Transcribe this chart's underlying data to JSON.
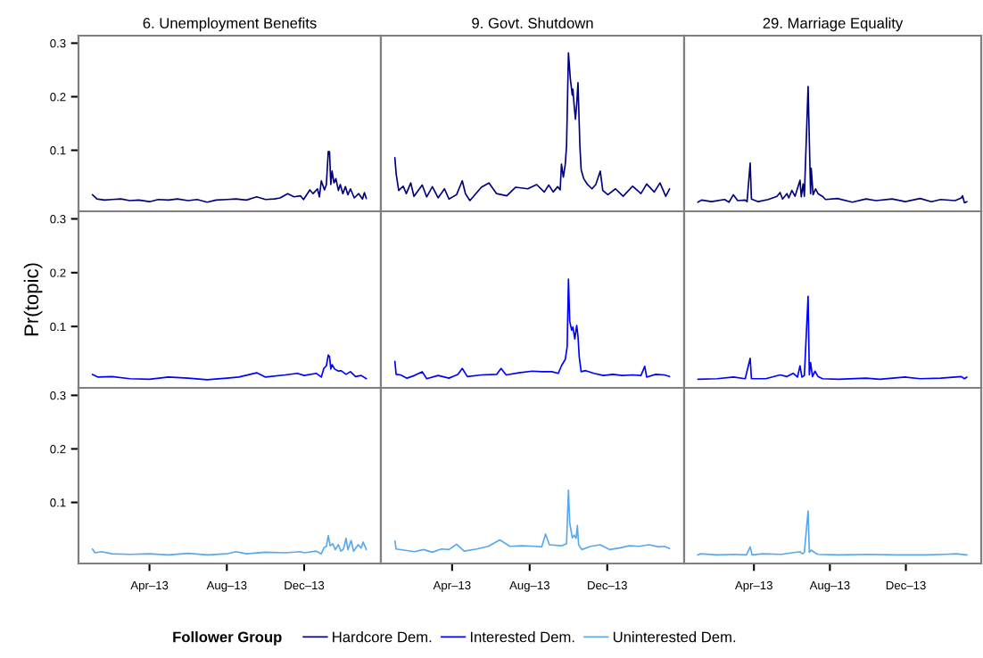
{
  "chart_data": [
    {
      "type": "line",
      "title": "6. Unemployment Benefits",
      "tick_labels": "y",
      "xlim": [
        "2012-12-10",
        "2014-04-01"
      ],
      "ylim": [
        -0.014,
        0.314
      ],
      "yticks": [
        0.1,
        0.2,
        0.3
      ],
      "xticks": [
        {
          "value": "2013-04-01",
          "label": "Apr–13"
        },
        {
          "value": "2013-08-01",
          "label": "Aug–13"
        },
        {
          "value": "2013-12-01",
          "label": "Dec–13"
        }
      ],
      "series": [
        {
          "name": "Hardcore Dem.",
          "color": "#00007f",
          "x": [
            "2013-01-01",
            "2013-01-08",
            "2013-01-20",
            "2013-02-01",
            "2013-02-15",
            "2013-03-01",
            "2013-03-15",
            "2013-04-01",
            "2013-04-15",
            "2013-05-01",
            "2013-05-15",
            "2013-06-01",
            "2013-06-15",
            "2013-07-01",
            "2013-07-15",
            "2013-08-01",
            "2013-08-15",
            "2013-09-01",
            "2013-09-17",
            "2013-10-01",
            "2013-10-15",
            "2013-10-24",
            "2013-11-05",
            "2013-11-15",
            "2013-11-25",
            "2013-11-30",
            "2013-12-10",
            "2013-12-15",
            "2013-12-22",
            "2013-12-25",
            "2013-12-28",
            "2014-01-02",
            "2014-01-05",
            "2014-01-08",
            "2014-01-10",
            "2014-01-12",
            "2014-01-14",
            "2014-01-17",
            "2014-01-20",
            "2014-01-24",
            "2014-01-27",
            "2014-01-31",
            "2014-02-04",
            "2014-02-08",
            "2014-02-12",
            "2014-02-18",
            "2014-02-25",
            "2014-03-03",
            "2014-03-06",
            "2014-03-09"
          ],
          "values": [
            0.017,
            0.009,
            0.007,
            0.008,
            0.009,
            0.006,
            0.007,
            0.004,
            0.008,
            0.007,
            0.009,
            0.006,
            0.008,
            0.003,
            0.007,
            0.008,
            0.009,
            0.007,
            0.013,
            0.008,
            0.009,
            0.011,
            0.019,
            0.013,
            0.015,
            0.008,
            0.026,
            0.019,
            0.028,
            0.013,
            0.043,
            0.026,
            0.036,
            0.098,
            0.097,
            0.036,
            0.061,
            0.039,
            0.047,
            0.025,
            0.036,
            0.019,
            0.032,
            0.017,
            0.028,
            0.011,
            0.019,
            0.009,
            0.021,
            0.01
          ]
        }
      ]
    },
    {
      "type": "line",
      "title": "9. Govt. Shutdown",
      "tick_labels": false,
      "xlim": [
        "2012-12-10",
        "2014-04-01"
      ],
      "ylim": [
        -0.014,
        0.314
      ],
      "yticks": [
        0.1,
        0.2,
        0.3
      ],
      "xticks": [
        {
          "value": "2013-04-01",
          "label": "Apr–13"
        },
        {
          "value": "2013-08-01",
          "label": "Aug–13"
        },
        {
          "value": "2013-12-01",
          "label": "Dec–13"
        }
      ],
      "series": [
        {
          "name": "Hardcore Dem.",
          "color": "#00007f",
          "x": [
            "2013-01-01",
            "2013-01-03",
            "2013-01-07",
            "2013-01-14",
            "2013-01-19",
            "2013-01-26",
            "2013-01-31",
            "2013-02-13",
            "2013-02-20",
            "2013-03-01",
            "2013-03-10",
            "2013-03-20",
            "2013-03-27",
            "2013-04-08",
            "2013-04-17",
            "2013-04-22",
            "2013-04-29",
            "2013-05-17",
            "2013-05-29",
            "2013-06-10",
            "2013-06-26",
            "2013-07-10",
            "2013-07-29",
            "2013-08-12",
            "2013-08-24",
            "2013-08-31",
            "2013-09-07",
            "2013-09-14",
            "2013-09-18",
            "2013-09-20",
            "2013-09-23",
            "2013-09-26",
            "2013-09-28",
            "2013-10-01",
            "2013-10-04",
            "2013-10-07",
            "2013-10-08",
            "2013-10-10",
            "2013-10-12",
            "2013-10-14",
            "2013-10-16",
            "2013-10-19",
            "2013-10-21",
            "2013-10-25",
            "2013-10-31",
            "2013-11-07",
            "2013-11-13",
            "2013-11-20",
            "2013-11-24",
            "2013-12-02",
            "2013-12-14",
            "2013-12-26",
            "2014-01-10",
            "2014-01-23",
            "2014-02-01",
            "2014-02-13",
            "2014-02-22",
            "2014-03-03",
            "2014-03-09"
          ],
          "values": [
            0.086,
            0.056,
            0.025,
            0.033,
            0.019,
            0.039,
            0.014,
            0.035,
            0.013,
            0.032,
            0.011,
            0.028,
            0.009,
            0.017,
            0.043,
            0.019,
            0.006,
            0.031,
            0.039,
            0.019,
            0.015,
            0.031,
            0.028,
            0.036,
            0.022,
            0.035,
            0.022,
            0.032,
            0.026,
            0.074,
            0.05,
            0.074,
            0.108,
            0.282,
            0.233,
            0.203,
            0.214,
            0.183,
            0.158,
            0.186,
            0.226,
            0.108,
            0.064,
            0.047,
            0.036,
            0.028,
            0.036,
            0.061,
            0.025,
            0.017,
            0.028,
            0.014,
            0.033,
            0.019,
            0.037,
            0.022,
            0.039,
            0.014,
            0.028
          ]
        }
      ]
    },
    {
      "type": "line",
      "title": "29. Marriage Equality",
      "tick_labels": false,
      "xlim": [
        "2012-12-10",
        "2014-04-01"
      ],
      "ylim": [
        -0.014,
        0.314
      ],
      "yticks": [
        0.1,
        0.2,
        0.3
      ],
      "xticks": [
        {
          "value": "2013-04-01",
          "label": "Apr–13"
        },
        {
          "value": "2013-08-01",
          "label": "Aug–13"
        },
        {
          "value": "2013-12-01",
          "label": "Dec–13"
        }
      ],
      "series": [
        {
          "name": "Hardcore Dem.",
          "color": "#00007f",
          "x": [
            "2013-01-01",
            "2013-01-07",
            "2013-01-23",
            "2013-02-13",
            "2013-02-20",
            "2013-02-27",
            "2013-03-06",
            "2013-03-18",
            "2013-03-21",
            "2013-03-26",
            "2013-03-28",
            "2013-04-08",
            "2013-04-24",
            "2013-05-01",
            "2013-05-08",
            "2013-05-13",
            "2013-05-17",
            "2013-05-24",
            "2013-05-27",
            "2013-06-01",
            "2013-06-06",
            "2013-06-14",
            "2013-06-16",
            "2013-06-19",
            "2013-06-21",
            "2013-06-27",
            "2013-07-01",
            "2013-07-02",
            "2013-07-05",
            "2013-07-09",
            "2013-07-13",
            "2013-07-20",
            "2013-07-25",
            "2013-08-13",
            "2013-09-06",
            "2013-09-28",
            "2013-10-14",
            "2013-11-09",
            "2013-11-30",
            "2013-12-24",
            "2014-01-11",
            "2014-01-26",
            "2014-02-18",
            "2014-02-28",
            "2014-03-02",
            "2014-03-05",
            "2014-03-09"
          ],
          "values": [
            0.003,
            0.007,
            0.004,
            0.008,
            0.003,
            0.017,
            0.006,
            0.007,
            0.004,
            0.076,
            0.009,
            0.004,
            0.008,
            0.011,
            0.014,
            0.021,
            0.009,
            0.019,
            0.011,
            0.025,
            0.014,
            0.044,
            0.013,
            0.037,
            0.014,
            0.219,
            0.019,
            0.066,
            0.017,
            0.028,
            0.019,
            0.014,
            0.008,
            0.01,
            0.003,
            0.009,
            0.006,
            0.009,
            0.004,
            0.01,
            0.004,
            0.008,
            0.006,
            0.011,
            0.015,
            0.002,
            0.004
          ]
        }
      ]
    },
    {
      "type": "line",
      "ylabel": "Pr(topic)",
      "tick_labels": "y",
      "xlim": [
        "2012-12-10",
        "2014-04-01"
      ],
      "ylim": [
        -0.014,
        0.314
      ],
      "yticks": [
        0.1,
        0.2,
        0.3
      ],
      "xticks": [
        {
          "value": "2013-04-01",
          "label": "Apr–13"
        },
        {
          "value": "2013-08-01",
          "label": "Aug–13"
        },
        {
          "value": "2013-12-01",
          "label": "Dec–13"
        }
      ],
      "series": [
        {
          "name": "Interested Dem.",
          "color": "#0000ff",
          "x": [
            "2013-01-01",
            "2013-01-10",
            "2013-02-01",
            "2013-03-01",
            "2013-04-01",
            "2013-05-01",
            "2013-06-01",
            "2013-07-01",
            "2013-08-01",
            "2013-08-20",
            "2013-09-17",
            "2013-10-01",
            "2013-11-01",
            "2013-11-20",
            "2013-12-01",
            "2013-12-20",
            "2013-12-28",
            "2014-01-01",
            "2014-01-05",
            "2014-01-08",
            "2014-01-10",
            "2014-01-12",
            "2014-01-14",
            "2014-01-18",
            "2014-01-24",
            "2014-01-28",
            "2014-02-05",
            "2014-02-12",
            "2014-02-20",
            "2014-03-01",
            "2014-03-09"
          ],
          "values": [
            0.011,
            0.006,
            0.007,
            0.003,
            0.002,
            0.006,
            0.004,
            0.001,
            0.004,
            0.006,
            0.014,
            0.006,
            0.01,
            0.013,
            0.009,
            0.013,
            0.006,
            0.022,
            0.027,
            0.047,
            0.044,
            0.021,
            0.029,
            0.021,
            0.017,
            0.018,
            0.011,
            0.016,
            0.007,
            0.009,
            0.003
          ]
        }
      ]
    },
    {
      "type": "line",
      "tick_labels": false,
      "xlim": [
        "2012-12-10",
        "2014-04-01"
      ],
      "ylim": [
        -0.014,
        0.314
      ],
      "yticks": [
        0.1,
        0.2,
        0.3
      ],
      "xticks": [
        {
          "value": "2013-04-01",
          "label": "Apr–13"
        },
        {
          "value": "2013-08-01",
          "label": "Aug–13"
        },
        {
          "value": "2013-12-01",
          "label": "Dec–13"
        }
      ],
      "series": [
        {
          "name": "Interested Dem.",
          "color": "#0000ff",
          "x": [
            "2013-01-01",
            "2013-01-03",
            "2013-01-10",
            "2013-01-20",
            "2013-02-01",
            "2013-02-13",
            "2013-02-20",
            "2013-03-10",
            "2013-03-27",
            "2013-04-10",
            "2013-04-17",
            "2013-04-25",
            "2013-05-17",
            "2013-06-10",
            "2013-06-17",
            "2013-06-25",
            "2013-07-15",
            "2013-08-05",
            "2013-08-20",
            "2013-09-05",
            "2013-09-15",
            "2013-09-20",
            "2013-09-26",
            "2013-09-29",
            "2013-10-01",
            "2013-10-03",
            "2013-10-06",
            "2013-10-08",
            "2013-10-11",
            "2013-10-14",
            "2013-10-16",
            "2013-10-18",
            "2013-10-21",
            "2013-10-28",
            "2013-11-10",
            "2013-11-25",
            "2013-12-10",
            "2013-12-25",
            "2014-01-10",
            "2014-01-23",
            "2014-01-29",
            "2014-02-01",
            "2014-02-15",
            "2014-03-01",
            "2014-03-09"
          ],
          "values": [
            0.035,
            0.011,
            0.01,
            0.004,
            0.009,
            0.016,
            0.003,
            0.009,
            0.004,
            0.011,
            0.022,
            0.007,
            0.01,
            0.011,
            0.022,
            0.01,
            0.014,
            0.017,
            0.016,
            0.016,
            0.013,
            0.027,
            0.039,
            0.063,
            0.188,
            0.11,
            0.093,
            0.099,
            0.077,
            0.102,
            0.082,
            0.043,
            0.016,
            0.018,
            0.013,
            0.009,
            0.011,
            0.009,
            0.01,
            0.009,
            0.026,
            0.006,
            0.011,
            0.01,
            0.007
          ]
        }
      ]
    },
    {
      "type": "line",
      "tick_labels": false,
      "xlim": [
        "2012-12-10",
        "2014-04-01"
      ],
      "ylim": [
        -0.014,
        0.314
      ],
      "yticks": [
        0.1,
        0.2,
        0.3
      ],
      "xticks": [
        {
          "value": "2013-04-01",
          "label": "Apr–13"
        },
        {
          "value": "2013-08-01",
          "label": "Aug–13"
        },
        {
          "value": "2013-12-01",
          "label": "Dec–13"
        }
      ],
      "series": [
        {
          "name": "Interested Dem.",
          "color": "#0000ff",
          "x": [
            "2013-01-01",
            "2013-02-01",
            "2013-02-27",
            "2013-03-18",
            "2013-03-26",
            "2013-03-28",
            "2013-04-20",
            "2013-05-13",
            "2013-05-24",
            "2013-06-03",
            "2013-06-10",
            "2013-06-14",
            "2013-06-17",
            "2013-06-21",
            "2013-06-27",
            "2013-06-29",
            "2013-07-01",
            "2013-07-04",
            "2013-07-08",
            "2013-07-13",
            "2013-07-20",
            "2013-08-15",
            "2013-09-28",
            "2013-10-20",
            "2013-11-30",
            "2013-12-24",
            "2014-01-26",
            "2014-02-28",
            "2014-03-05",
            "2014-03-09"
          ],
          "values": [
            0.002,
            0.003,
            0.006,
            0.003,
            0.041,
            0.003,
            0.003,
            0.01,
            0.007,
            0.013,
            0.006,
            0.027,
            0.006,
            0.009,
            0.156,
            0.01,
            0.033,
            0.007,
            0.017,
            0.007,
            0.003,
            0.002,
            0.004,
            0.002,
            0.006,
            0.003,
            0.004,
            0.007,
            0.003,
            0.006
          ]
        }
      ]
    },
    {
      "type": "line",
      "xlim": [
        "2012-12-10",
        "2014-04-01"
      ],
      "ylim": [
        -0.014,
        0.314
      ],
      "yticks": [
        0.1,
        0.2,
        0.3
      ],
      "xticks": [
        {
          "value": "2013-04-01",
          "label": "Apr–13"
        },
        {
          "value": "2013-08-01",
          "label": "Aug–13"
        },
        {
          "value": "2013-12-01",
          "label": "Dec–13"
        }
      ],
      "series": [
        {
          "name": "Uninterested Dem.",
          "color": "#5aa8ec",
          "x": [
            "2013-01-01",
            "2013-01-05",
            "2013-01-15",
            "2013-02-01",
            "2013-03-01",
            "2013-04-01",
            "2013-05-01",
            "2013-06-01",
            "2013-07-01",
            "2013-08-01",
            "2013-08-15",
            "2013-09-01",
            "2013-10-01",
            "2013-11-01",
            "2013-11-25",
            "2013-12-01",
            "2013-12-20",
            "2013-12-28",
            "2014-01-01",
            "2014-01-05",
            "2014-01-08",
            "2014-01-11",
            "2014-01-15",
            "2014-01-19",
            "2014-01-24",
            "2014-01-28",
            "2014-02-01",
            "2014-02-05",
            "2014-02-08",
            "2014-02-13",
            "2014-02-17",
            "2014-02-24",
            "2014-03-01",
            "2014-03-04",
            "2014-03-09"
          ],
          "values": [
            0.013,
            0.006,
            0.008,
            0.004,
            0.003,
            0.004,
            0.002,
            0.005,
            0.002,
            0.004,
            0.008,
            0.004,
            0.007,
            0.006,
            0.008,
            0.006,
            0.009,
            0.004,
            0.015,
            0.018,
            0.038,
            0.019,
            0.023,
            0.012,
            0.021,
            0.009,
            0.013,
            0.033,
            0.012,
            0.029,
            0.009,
            0.021,
            0.015,
            0.026,
            0.012
          ]
        }
      ]
    },
    {
      "type": "line",
      "tick_labels": "x",
      "legend": "bottom",
      "legend_title": "Follower Group",
      "xlim": [
        "2012-12-10",
        "2014-04-01"
      ],
      "ylim": [
        -0.014,
        0.314
      ],
      "yticks": [
        0.1,
        0.2,
        0.3
      ],
      "xticks": [
        {
          "value": "2013-04-01",
          "label": "Apr–13"
        },
        {
          "value": "2013-08-01",
          "label": "Aug–13"
        },
        {
          "value": "2013-12-01",
          "label": "Dec–13"
        }
      ],
      "series": [
        {
          "name": "Uninterested Dem.",
          "color": "#5aa8ec",
          "x": [
            "2013-01-01",
            "2013-01-03",
            "2013-01-15",
            "2013-02-01",
            "2013-02-15",
            "2013-03-01",
            "2013-03-15",
            "2013-03-27",
            "2013-04-08",
            "2013-04-20",
            "2013-05-10",
            "2013-05-28",
            "2013-06-15",
            "2013-07-01",
            "2013-07-20",
            "2013-08-10",
            "2013-08-20",
            "2013-08-26",
            "2013-09-01",
            "2013-09-20",
            "2013-09-28",
            "2013-10-01",
            "2013-10-03",
            "2013-10-07",
            "2013-10-10",
            "2013-10-13",
            "2013-10-15",
            "2013-10-17",
            "2013-10-22",
            "2013-11-05",
            "2013-11-20",
            "2013-12-05",
            "2013-12-20",
            "2014-01-05",
            "2014-01-20",
            "2014-02-05",
            "2014-02-20",
            "2014-03-01",
            "2014-03-09"
          ],
          "values": [
            0.028,
            0.013,
            0.011,
            0.008,
            0.012,
            0.007,
            0.013,
            0.012,
            0.022,
            0.009,
            0.013,
            0.018,
            0.03,
            0.018,
            0.019,
            0.018,
            0.017,
            0.041,
            0.021,
            0.019,
            0.023,
            0.123,
            0.062,
            0.034,
            0.039,
            0.033,
            0.057,
            0.021,
            0.012,
            0.018,
            0.021,
            0.012,
            0.015,
            0.019,
            0.018,
            0.021,
            0.017,
            0.018,
            0.014
          ]
        }
      ]
    },
    {
      "type": "line",
      "tick_labels": "x",
      "xlim": [
        "2012-12-10",
        "2014-04-01"
      ],
      "ylim": [
        -0.014,
        0.314
      ],
      "yticks": [
        0.1,
        0.2,
        0.3
      ],
      "xticks": [
        {
          "value": "2013-04-01",
          "label": "Apr–13"
        },
        {
          "value": "2013-08-01",
          "label": "Aug–13"
        },
        {
          "value": "2013-12-01",
          "label": "Dec–13"
        }
      ],
      "series": [
        {
          "name": "Uninterested Dem.",
          "color": "#5aa8ec",
          "x": [
            "2013-01-01",
            "2013-01-05",
            "2013-02-01",
            "2013-03-01",
            "2013-03-20",
            "2013-03-26",
            "2013-03-29",
            "2013-04-15",
            "2013-05-15",
            "2013-06-14",
            "2013-06-18",
            "2013-06-21",
            "2013-06-27",
            "2013-06-29",
            "2013-07-02",
            "2013-07-08",
            "2013-07-13",
            "2013-08-15",
            "2013-10-01",
            "2013-11-15",
            "2014-01-01",
            "2014-02-01",
            "2014-02-20",
            "2014-03-09"
          ],
          "values": [
            0.002,
            0.004,
            0.002,
            0.003,
            0.002,
            0.017,
            0.002,
            0.004,
            0.003,
            0.008,
            0.004,
            0.007,
            0.084,
            0.007,
            0.011,
            0.006,
            0.003,
            0.002,
            0.003,
            0.002,
            0.002,
            0.003,
            0.004,
            0.002
          ]
        }
      ]
    }
  ]
}
